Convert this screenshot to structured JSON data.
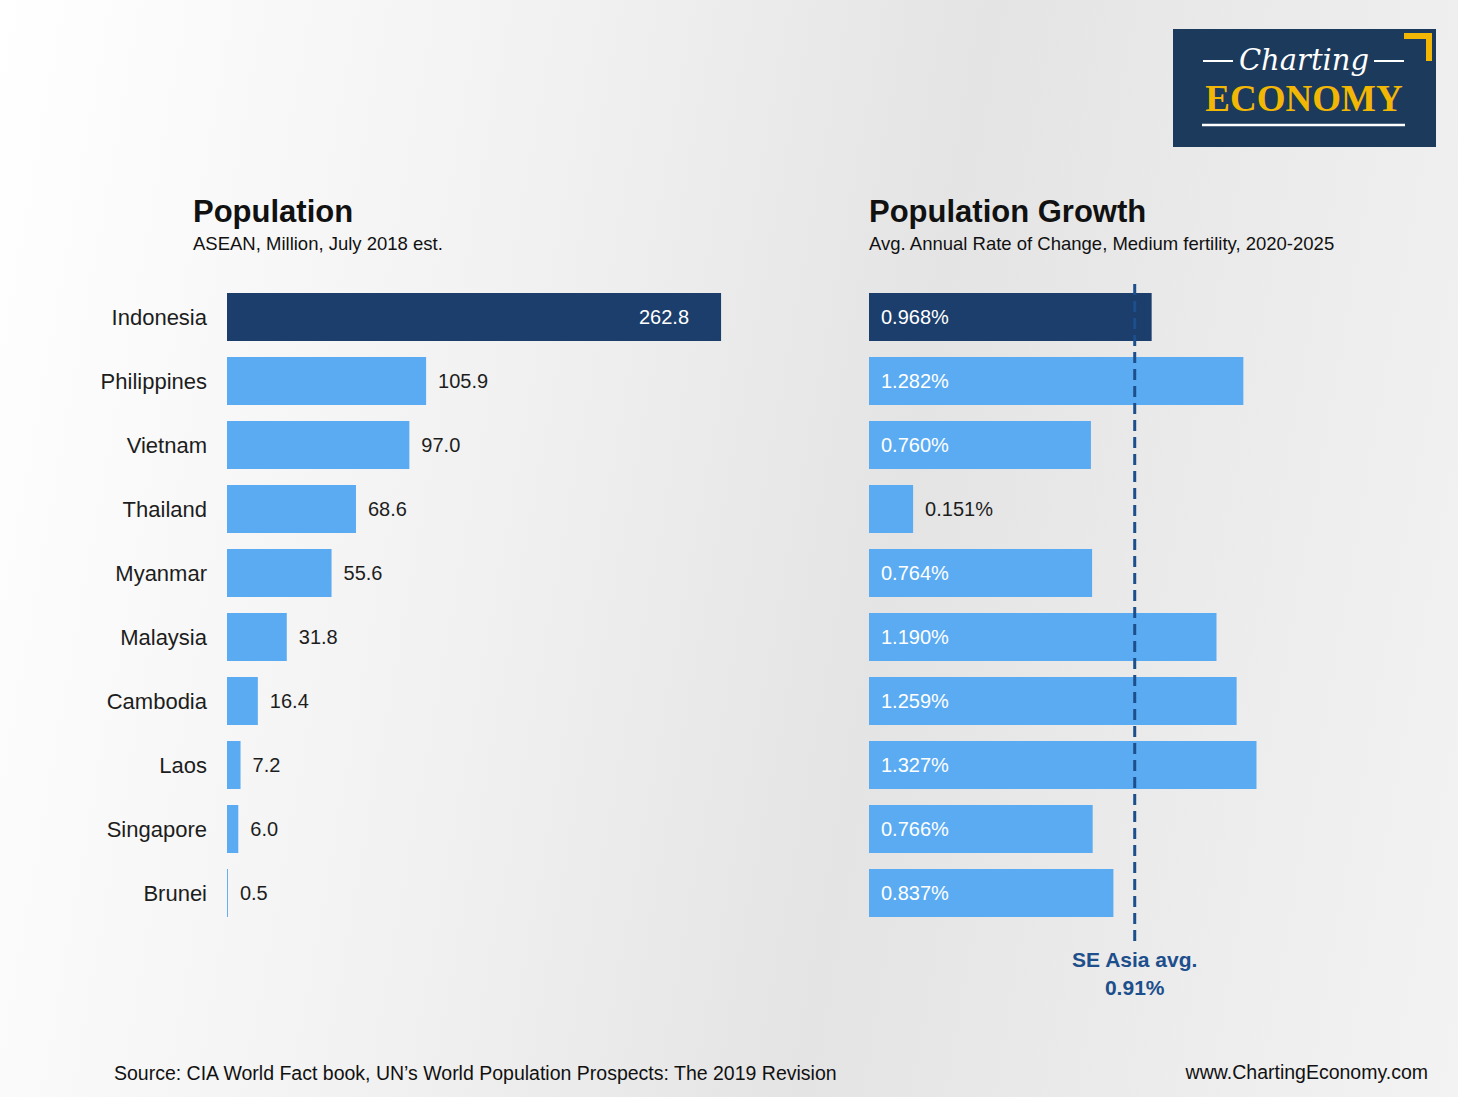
{
  "chart_data": [
    {
      "type": "bar",
      "orientation": "horizontal",
      "title": "Population",
      "subtitle": "ASEAN, Million, July 2018 est.",
      "categories": [
        "Indonesia",
        "Philippines",
        "Vietnam",
        "Thailand",
        "Myanmar",
        "Malaysia",
        "Cambodia",
        "Laos",
        "Singapore",
        "Brunei"
      ],
      "values": [
        262.8,
        105.9,
        97.0,
        68.6,
        55.6,
        31.8,
        16.4,
        7.2,
        6.0,
        0.5
      ],
      "value_labels": [
        "262.8",
        "105.9",
        "97.0",
        "68.6",
        "55.6",
        "31.8",
        "16.4",
        "7.2",
        "6.0",
        "0.5"
      ],
      "colors": [
        "#1b3e6c",
        "#5aabf2",
        "#5aabf2",
        "#5aabf2",
        "#5aabf2",
        "#5aabf2",
        "#5aabf2",
        "#5aabf2",
        "#5aabf2",
        "#5aabf2"
      ],
      "xlim": [
        0,
        300
      ],
      "data_labels": true,
      "tick_labels": "y",
      "grid": false
    },
    {
      "type": "bar",
      "orientation": "horizontal",
      "title": "Population Growth",
      "subtitle": "Avg. Annual Rate of Change, Medium fertility, 2020-2025",
      "categories": [
        "Indonesia",
        "Philippines",
        "Vietnam",
        "Thailand",
        "Myanmar",
        "Malaysia",
        "Cambodia",
        "Laos",
        "Singapore",
        "Brunei"
      ],
      "values": [
        0.968,
        1.282,
        0.76,
        0.151,
        0.764,
        1.19,
        1.259,
        1.327,
        0.766,
        0.837
      ],
      "value_labels": [
        "0.968%",
        "1.282%",
        "0.760%",
        "0.151%",
        "0.764%",
        "1.190%",
        "1.259%",
        "1.327%",
        "0.766%",
        "0.837%"
      ],
      "colors": [
        "#1b3e6c",
        "#5aabf2",
        "#5aabf2",
        "#5aabf2",
        "#5aabf2",
        "#5aabf2",
        "#5aabf2",
        "#5aabf2",
        "#5aabf2",
        "#5aabf2"
      ],
      "xlim": [
        0,
        1.5
      ],
      "data_labels": true,
      "tick_labels": false,
      "grid": false,
      "annotations": [
        {
          "text": "SE Asia avg.",
          "value": 0.91,
          "label": "0.91%"
        }
      ]
    }
  ],
  "logo": {
    "top": "Charting",
    "bottom": "ECONOMY"
  },
  "source": "Source: CIA World Fact book, UN’s World Population Prospects: The 2019 Revision",
  "website": "www.ChartingEconomy.com"
}
